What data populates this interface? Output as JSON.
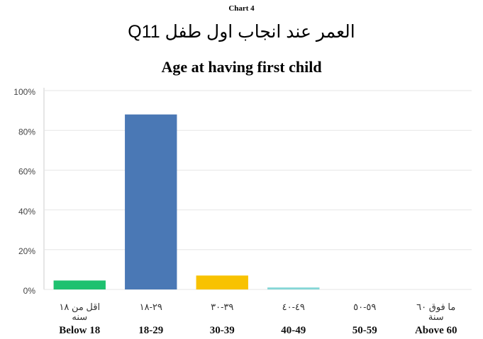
{
  "chart_data": {
    "type": "bar",
    "label": "Chart 4",
    "title": "العمر عند انجاب اول طفل Q11",
    "subtitle": "Age at having first child",
    "categories": [
      "Below 18",
      "18-29",
      "30-39",
      "40-49",
      "50-59",
      "Above 60"
    ],
    "arabic_categories": [
      "اقل من ١٨ سنه",
      "٢٩-١٨",
      "٣٩-٣٠",
      "٤٩-٤٠",
      "٥٩-٥٠",
      "ما فوق ٦٠ سنة"
    ],
    "values": [
      4.5,
      88,
      7,
      1,
      0,
      0
    ],
    "colors": [
      "#1ec16f",
      "#4a78b5",
      "#f8c201",
      "#85d6d6",
      "#9aa8d8",
      "#c9c9c9"
    ],
    "ylim": [
      0,
      100
    ],
    "yticks": [
      {
        "value": 0,
        "label": "0%"
      },
      {
        "value": 20,
        "label": "20%"
      },
      {
        "value": 40,
        "label": "40%"
      },
      {
        "value": 60,
        "label": "60%"
      },
      {
        "value": 80,
        "label": "80%"
      },
      {
        "value": 100,
        "label": "100%"
      }
    ],
    "grid": true
  }
}
